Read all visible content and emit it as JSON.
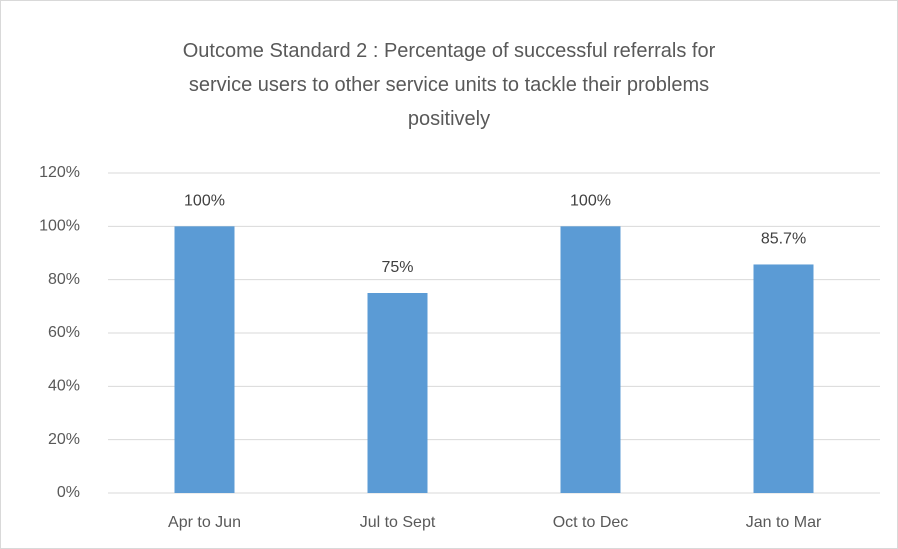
{
  "chart_data": {
    "type": "bar",
    "title": "Outcome Standard 2 : Percentage of successful referrals for service users to other service units to tackle their problems positively",
    "categories": [
      "Apr to Jun",
      "Jul to Sept",
      "Oct to Dec",
      "Jan to Mar"
    ],
    "values": [
      100,
      75,
      100,
      85.7
    ],
    "value_labels": [
      "100%",
      "75%",
      "100%",
      "85.7%"
    ],
    "color": "#5b9bd5",
    "ylim": [
      0,
      120
    ],
    "yticks": [
      {
        "value": 0,
        "label": "0%"
      },
      {
        "value": 20,
        "label": "20%"
      },
      {
        "value": 40,
        "label": "40%"
      },
      {
        "value": 60,
        "label": "60%"
      },
      {
        "value": 80,
        "label": "80%"
      },
      {
        "value": 100,
        "label": "100%"
      },
      {
        "value": 120,
        "label": "120%"
      }
    ],
    "grid": true
  }
}
